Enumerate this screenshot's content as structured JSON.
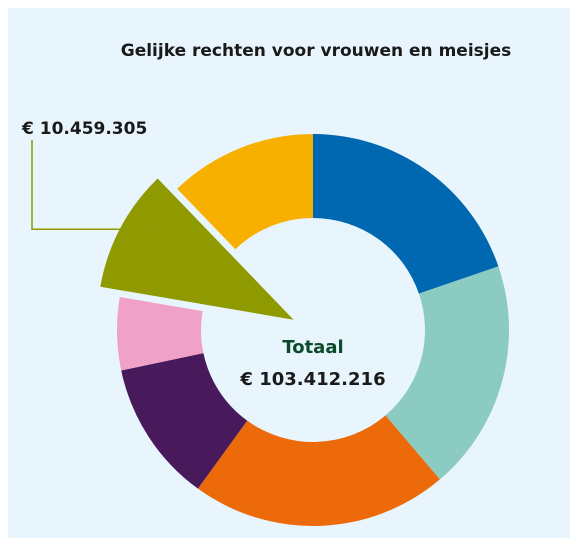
{
  "chart_data": {
    "type": "donut",
    "title": "Gelijke rechten voor vrouwen en meisjes",
    "center_label": "Totaal",
    "center_value": "€ 103.412.216",
    "values": [
      20400000,
      19700000,
      21900000,
      12100000,
      6200000,
      10459305,
      12600000
    ],
    "value_labels": [
      null,
      null,
      null,
      null,
      null,
      "€ 10.459.305",
      null
    ],
    "colors": [
      "#0067b1",
      "#8bcbc1",
      "#ec6a0a",
      "#481a5c",
      "#f0a1c8",
      "#8f9900",
      "#f8b000"
    ],
    "exploded": [
      5
    ]
  }
}
